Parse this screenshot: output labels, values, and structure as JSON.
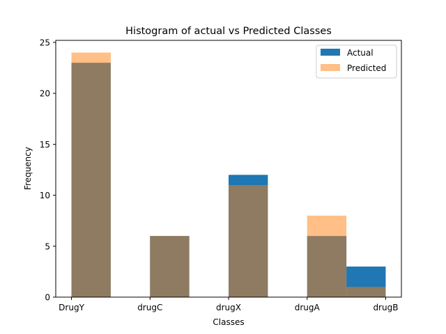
{
  "chart_data": {
    "type": "bar",
    "title": "Histogram of actual vs Predicted Classes",
    "xlabel": "Classes",
    "ylabel": "Frequency",
    "categories": [
      "DrugY",
      "drugC",
      "drugX",
      "drugA",
      "drugB"
    ],
    "ylim": [
      0,
      25.2
    ],
    "yticks": [
      0,
      5,
      10,
      15,
      20,
      25
    ],
    "grid": false,
    "legend_position": "top-right",
    "overlap": true,
    "series": [
      {
        "name": "Actual",
        "values": [
          23,
          6,
          12,
          6,
          3
        ],
        "color": "#1f77b4",
        "opacity": 1
      },
      {
        "name": "Predicted",
        "values": [
          24,
          6,
          11,
          8,
          1
        ],
        "color": "#ff7f0e",
        "opacity": 0.5
      }
    ]
  }
}
